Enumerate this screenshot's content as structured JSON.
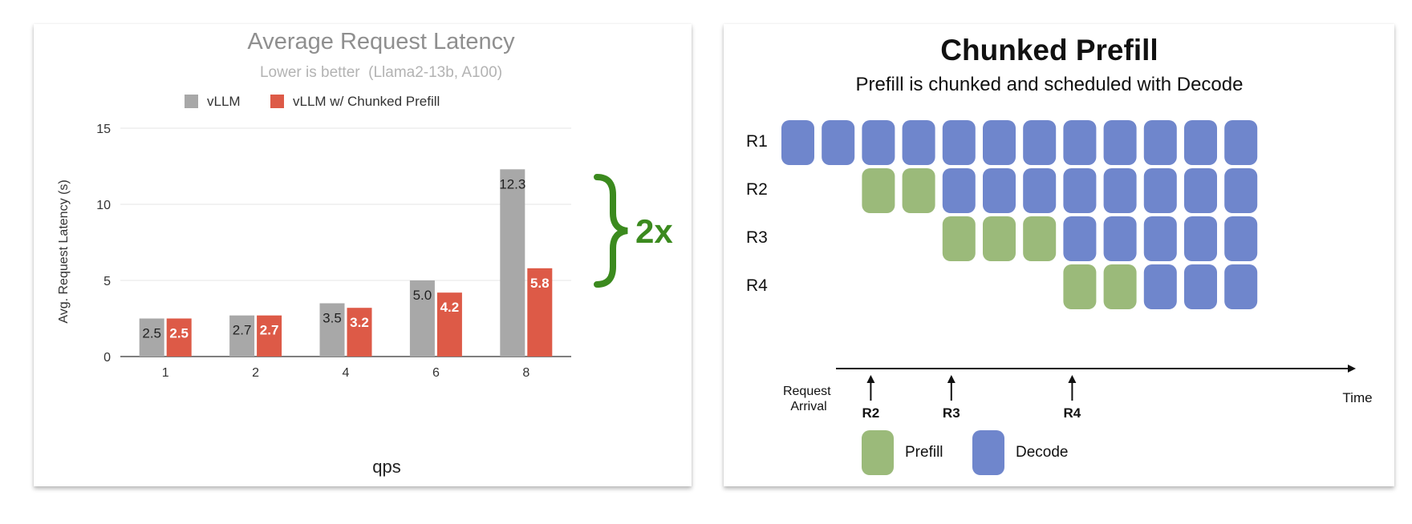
{
  "chart_data": {
    "type": "bar",
    "title": "Average Request Latency",
    "subtitle": "Lower is better  (Llama2-13b, A100)",
    "xlabel": "qps",
    "ylabel": "Avg. Request Latency (s)",
    "categories": [
      "1",
      "2",
      "4",
      "6",
      "8"
    ],
    "yticks": [
      "0",
      "5",
      "10",
      "15"
    ],
    "ylim": [
      0,
      15
    ],
    "grid": true,
    "legend_position": "top",
    "series": [
      {
        "name": "vLLM",
        "color": "#a8a8a8",
        "values": [
          2.5,
          2.7,
          3.5,
          5.0,
          12.3
        ],
        "labels": [
          "2.5",
          "2.7",
          "3.5",
          "5.0",
          "12.3"
        ]
      },
      {
        "name": "vLLM w/ Chunked Prefill",
        "color": "#dd5a47",
        "values": [
          2.5,
          2.7,
          3.2,
          4.2,
          5.8
        ],
        "labels": [
          "2.5",
          "2.7",
          "3.2",
          "4.2",
          "5.8"
        ]
      }
    ],
    "annotation": {
      "text": "2x",
      "color": "#3b8a1e"
    }
  },
  "diagram": {
    "title": "Chunked Prefill",
    "subtitle": "Prefill is chunked and scheduled with Decode",
    "slots": 12,
    "rows": [
      {
        "label": "R1",
        "cells": [
          "decode",
          "decode",
          "decode",
          "decode",
          "decode",
          "decode",
          "decode",
          "decode",
          "decode",
          "decode",
          "decode",
          "decode"
        ]
      },
      {
        "label": "R2",
        "cells": [
          "empty",
          "empty",
          "prefill",
          "prefill",
          "decode",
          "decode",
          "decode",
          "decode",
          "decode",
          "decode",
          "decode",
          "decode"
        ]
      },
      {
        "label": "R3",
        "cells": [
          "empty",
          "empty",
          "empty",
          "empty",
          "prefill",
          "prefill",
          "prefill",
          "decode",
          "decode",
          "decode",
          "decode",
          "decode"
        ]
      },
      {
        "label": "R4",
        "cells": [
          "empty",
          "empty",
          "empty",
          "empty",
          "empty",
          "empty",
          "empty",
          "prefill",
          "prefill",
          "decode",
          "decode",
          "decode"
        ]
      }
    ],
    "timeline": {
      "start_label": "Request Arrival",
      "end_label": "Time",
      "arrivals": [
        {
          "label": "R2",
          "slot": 2
        },
        {
          "label": "R3",
          "slot": 4
        },
        {
          "label": "R4",
          "slot": 7
        }
      ]
    },
    "legend": [
      {
        "key": "prefill",
        "label": "Prefill"
      },
      {
        "key": "decode",
        "label": "Decode"
      }
    ],
    "colors": {
      "prefill": "#9bba7a",
      "decode": "#6f86cc"
    }
  }
}
